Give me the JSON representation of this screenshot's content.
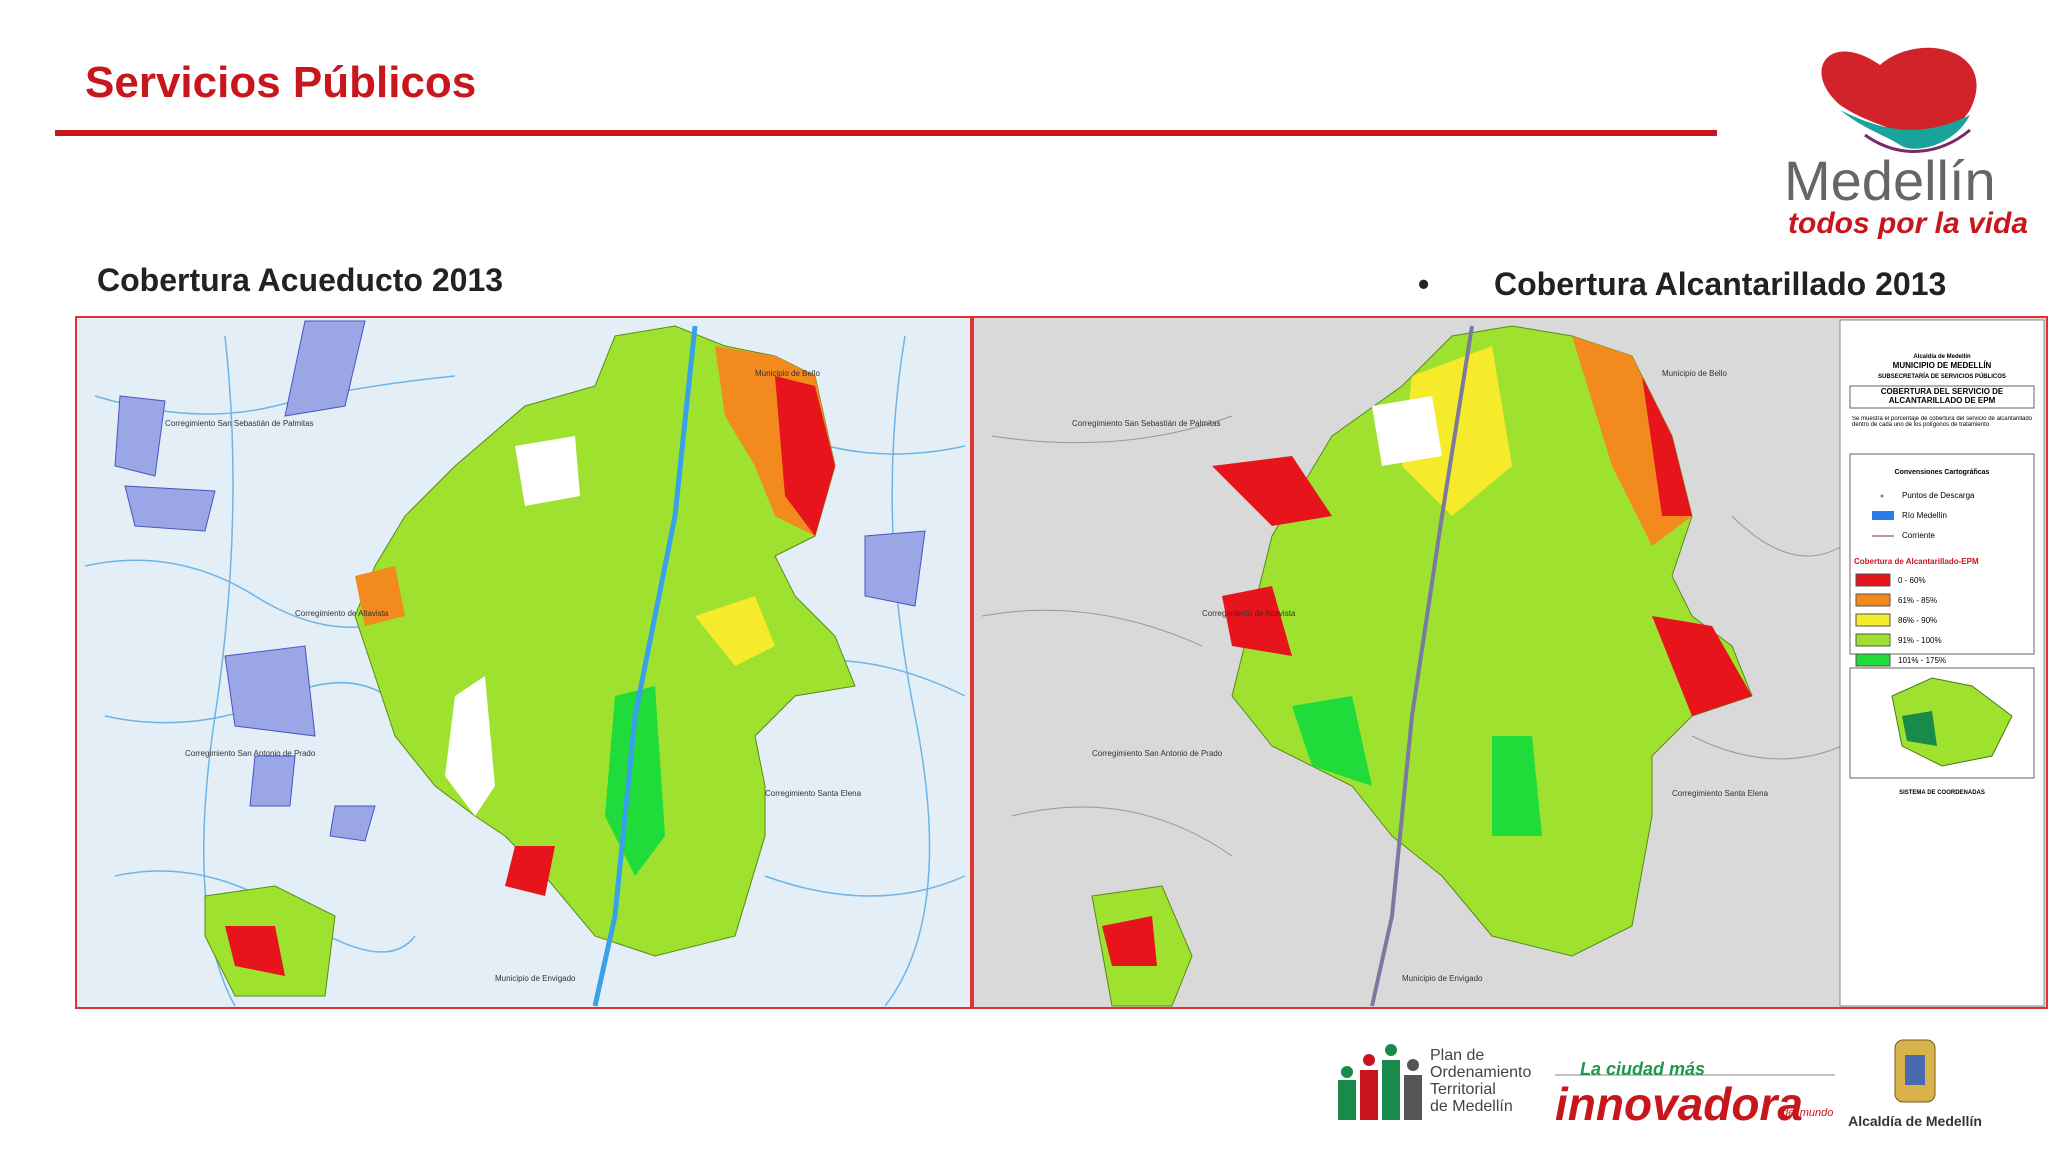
{
  "header": {
    "title": "Servicios Públicos"
  },
  "logo": {
    "name": "Medellín",
    "tagline": "todos por la vida"
  },
  "maps": [
    {
      "title": "Cobertura  Acueducto 2013",
      "labels": [
        "Corregimiento San Sebastián de Palmitas",
        "Corregimiento de Altavista",
        "Corregimiento San Antonio de Prado",
        "Corregimiento Santa Elena",
        "Municipio de Bello",
        "Municipio de Envigado"
      ]
    },
    {
      "title": "Cobertura Alcantarillado 2013",
      "labels": [
        "Corregimiento San Sebastián de Palmitas",
        "Corregimiento de Altavista",
        "Corregimiento San Antonio de Prado",
        "Corregimiento Santa Elena",
        "Municipio de Bello",
        "Municipio de Envigado"
      ],
      "legend": {
        "header": [
          "Alcaldía de Medellín",
          "MUNICIPIO DE MEDELLÍN",
          "SUBSECRETARÍA DE SERVICIOS PÚBLICOS"
        ],
        "box_title": "COBERTURA DEL SERVICIO DE ALCANTARILLADO DE EPM",
        "description": "Se muestra el porcentaje de cobertura del servicio de alcantarillado dentro de cada uno de los polígonos de tratamiento",
        "conventions_title": "Convensiones Cartográficas",
        "symbols": [
          "Puntos de Descarga",
          "Río Medellín",
          "Corriente"
        ],
        "classes_title": "Cobertura de Alcantarillado-EPM",
        "classes": [
          {
            "label": "0 - 60%",
            "color": "#e8141b"
          },
          {
            "label": "61% - 85%",
            "color": "#f28a1e"
          },
          {
            "label": "86% - 90%",
            "color": "#f5eb2a"
          },
          {
            "label": "91% - 100%",
            "color": "#9ee22f"
          },
          {
            "label": "101% - 175%",
            "color": "#1fdc3a"
          }
        ],
        "coords_title": "SISTEMA DE COORDENADAS"
      }
    }
  ],
  "footer": {
    "pot": [
      "Plan de",
      "Ordenamiento",
      "Territorial",
      "de Medellín"
    ],
    "slogan": [
      "La ciudad más",
      "innovadora",
      "del mundo"
    ],
    "alcaldia": "Alcaldía de Medellín"
  }
}
